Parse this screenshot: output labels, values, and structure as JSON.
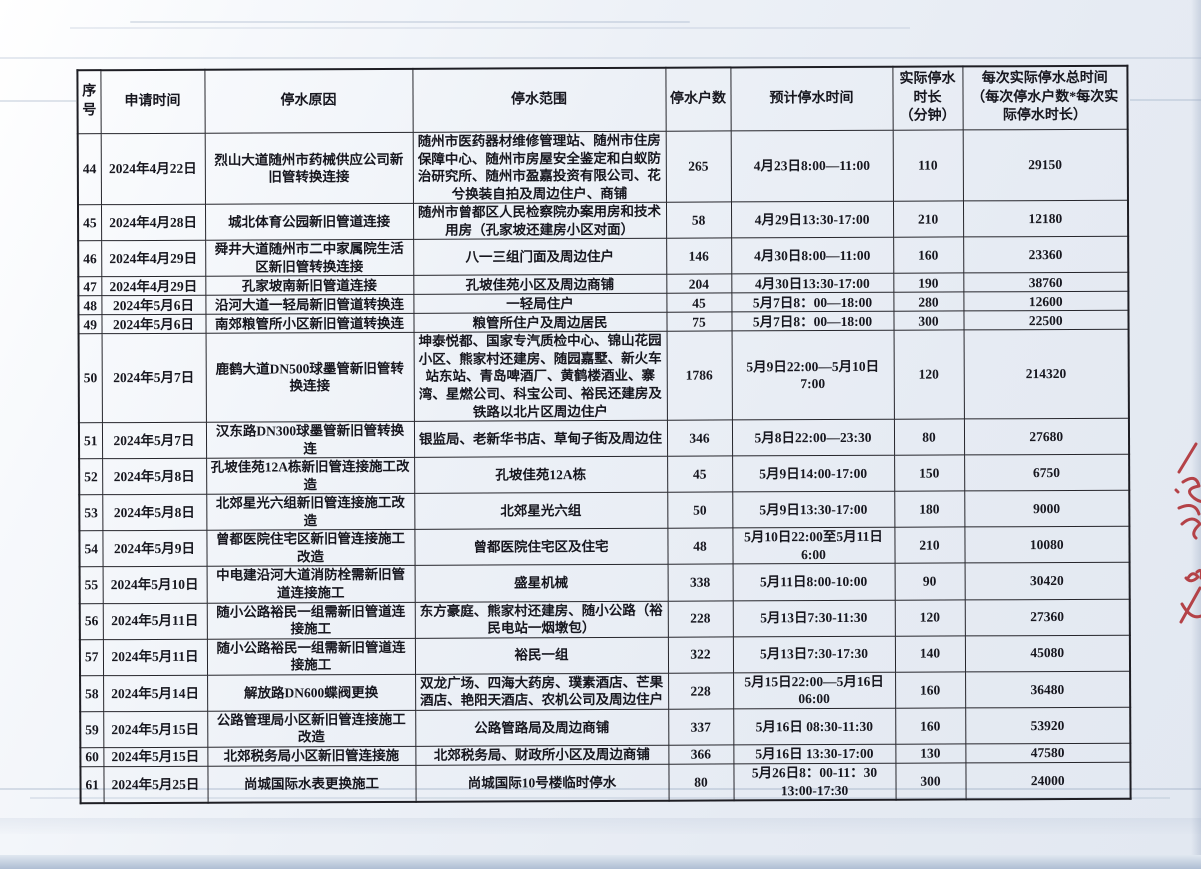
{
  "colors": {
    "paper": "#e9eef5",
    "ink": "#17171f",
    "table_border": "#26262c",
    "red_ink": "#b03136"
  },
  "table": {
    "headers": [
      "序\n号",
      "申请时间",
      "停水原因",
      "停水范围",
      "停水户数",
      "预计停水时间",
      "实际停水\n时长\n（分钟）",
      "每次实际停水总时间\n（每次停水户数*每次实\n际停水时长）"
    ],
    "rows": [
      {
        "no": "44",
        "date": "2024年4月22日",
        "reason": "烈山大道随州市药械供应公司新旧管转换连接",
        "scope": "随州市医药器材维修管理站、随州市住房保障中心、随州市房屋安全鉴定和白蚁防治研究所、随州市盈嘉投资有限公司、花兮换装自拍及周边住户、商铺",
        "households": "265",
        "planned": "4月23日8:00—11:00",
        "minutes": "110",
        "total": "29150"
      },
      {
        "no": "45",
        "date": "2024年4月28日",
        "reason": "城北体育公园新旧管道连接",
        "scope": "随州市曾都区人民检察院办案用房和技术用房（孔家坡还建房小区对面）",
        "households": "58",
        "planned": "4月29日13:30-17:00",
        "minutes": "210",
        "total": "12180"
      },
      {
        "no": "46",
        "date": "2024年4月29日",
        "reason": "舜井大道随州市二中家属院生活区新旧管转换连接",
        "scope": "八一三组门面及周边住户",
        "households": "146",
        "planned": "4月30日8:00—11:00",
        "minutes": "160",
        "total": "23360"
      },
      {
        "no": "47",
        "date": "2024年4月29日",
        "reason": "孔家坡南新旧管道连接",
        "scope": "孔坡佳苑小区及周边商铺",
        "households": "204",
        "planned": "4月30日13:30-17:00",
        "minutes": "190",
        "total": "38760"
      },
      {
        "no": "48",
        "date": "2024年5月6日",
        "reason": "沿河大道一轻局新旧管道转换连",
        "scope": "一轻局住户",
        "households": "45",
        "planned": "5月7日8：00—18:00",
        "minutes": "280",
        "total": "12600"
      },
      {
        "no": "49",
        "date": "2024年5月6日",
        "reason": "南郊粮管所小区新旧管道转换连",
        "scope": "粮管所住户及周边居民",
        "households": "75",
        "planned": "5月7日8：00—18:00",
        "minutes": "300",
        "total": "22500"
      },
      {
        "no": "50",
        "date": "2024年5月7日",
        "reason": "鹿鹤大道DN500球墨管新旧管转换连接",
        "scope": "坤泰悦都、国家专汽质检中心、锦山花园小区、熊家村还建房、随园嘉墅、新火车站东站、青岛啤酒厂、黄鹤楼酒业、寨湾、星燃公司、科宝公司、裕民还建房及铁路以北片区周边住户",
        "households": "1786",
        "planned": "5月9日22:00—5月10日\n7:00",
        "minutes": "120",
        "total": "214320"
      },
      {
        "no": "51",
        "date": "2024年5月7日",
        "reason": "汉东路DN300球墨管新旧管转换连",
        "scope": "银监局、老新华书店、草甸子街及周边住",
        "households": "346",
        "planned": "5月8日22:00—23:30",
        "minutes": "80",
        "total": "27680"
      },
      {
        "no": "52",
        "date": "2024年5月8日",
        "reason": "孔坡佳苑12A栋新旧管连接施工改造",
        "scope": "孔坡佳苑12A栋",
        "households": "45",
        "planned": "5月9日14:00-17:00",
        "minutes": "150",
        "total": "6750"
      },
      {
        "no": "53",
        "date": "2024年5月8日",
        "reason": "北郊星光六组新旧管连接施工改造",
        "scope": "北郊星光六组",
        "households": "50",
        "planned": "5月9日13:30-17:00",
        "minutes": "180",
        "total": "9000"
      },
      {
        "no": "54",
        "date": "2024年5月9日",
        "reason": "曾都医院住宅区新旧管连接施工改造",
        "scope": "曾都医院住宅区及住宅",
        "households": "48",
        "planned": "5月10日22:00至5月11日\n6:00",
        "minutes": "210",
        "total": "10080"
      },
      {
        "no": "55",
        "date": "2024年5月10日",
        "reason": "中电建沿河大道消防栓需新旧管道连接施工",
        "scope": "盛星机械",
        "households": "338",
        "planned": "5月11日8:00-10:00",
        "minutes": "90",
        "total": "30420"
      },
      {
        "no": "56",
        "date": "2024年5月11日",
        "reason": "随小公路裕民一组需新旧管道连接施工",
        "scope": "东方豪庭、熊家村还建房、随小公路（裕民电站一烟墩包）",
        "households": "228",
        "planned": "5月13日7:30-11:30",
        "minutes": "120",
        "total": "27360"
      },
      {
        "no": "57",
        "date": "2024年5月11日",
        "reason": "随小公路裕民一组需新旧管道连接施工",
        "scope": "裕民一组",
        "households": "322",
        "planned": "5月13日7:30-17:30",
        "minutes": "140",
        "total": "45080"
      },
      {
        "no": "58",
        "date": "2024年5月14日",
        "reason": "解放路DN600蝶阀更换",
        "scope": "双龙广场、四海大药房、璞素酒店、芒果酒店、艳阳天酒店、农机公司及周边住户",
        "households": "228",
        "planned": "5月15日22:00—5月16日\n06:00",
        "minutes": "160",
        "total": "36480"
      },
      {
        "no": "59",
        "date": "2024年5月15日",
        "reason": "公路管理局小区新旧管连接施工改造",
        "scope": "公路管路局及周边商铺",
        "households": "337",
        "planned": "5月16日 08:30-11:30",
        "minutes": "160",
        "total": "53920"
      },
      {
        "no": "60",
        "date": "2024年5月15日",
        "reason": "北郊税务局小区新旧管连接施",
        "scope": "北郊税务局、财政所小区及周边商铺",
        "households": "366",
        "planned": "5月16日 13:30-17:00",
        "minutes": "130",
        "total": "47580"
      },
      {
        "no": "61",
        "date": "2024年5月25日",
        "reason": "尚城国际水表更换施工",
        "scope": "尚城国际10号楼临时停水",
        "households": "80",
        "planned": "5月26日8：00-11：30\n13:00-17:30",
        "minutes": "300",
        "total": "24000"
      }
    ]
  }
}
